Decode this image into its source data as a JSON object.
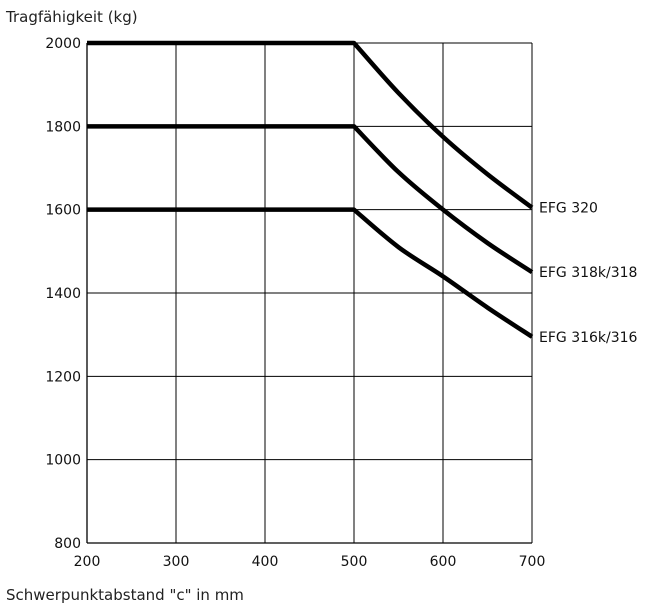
{
  "chart_data": {
    "type": "line",
    "title": "",
    "ylabel": "Tragfähigkeit (kg)",
    "xlabel": "Schwerpunktabstand \"c\" in mm",
    "xlim": [
      200,
      700
    ],
    "ylim": [
      800,
      2000
    ],
    "x_ticks": [
      "200",
      "300",
      "400",
      "500",
      "600",
      "700"
    ],
    "y_ticks": [
      "800",
      "1000",
      "1200",
      "1400",
      "1600",
      "1800",
      "2000"
    ],
    "grid": true,
    "series": [
      {
        "name": "EFG 320",
        "x": [
          200,
          500,
          550,
          600,
          650,
          700
        ],
        "y": [
          2000,
          2000,
          1880,
          1775,
          1685,
          1605
        ]
      },
      {
        "name": "EFG 318k/318",
        "x": [
          200,
          500,
          550,
          600,
          650,
          700
        ],
        "y": [
          1800,
          1800,
          1690,
          1600,
          1520,
          1450
        ]
      },
      {
        "name": "EFG 316k/316",
        "x": [
          200,
          500,
          550,
          600,
          650,
          700
        ],
        "y": [
          1600,
          1600,
          1510,
          1440,
          1365,
          1295
        ]
      }
    ]
  }
}
